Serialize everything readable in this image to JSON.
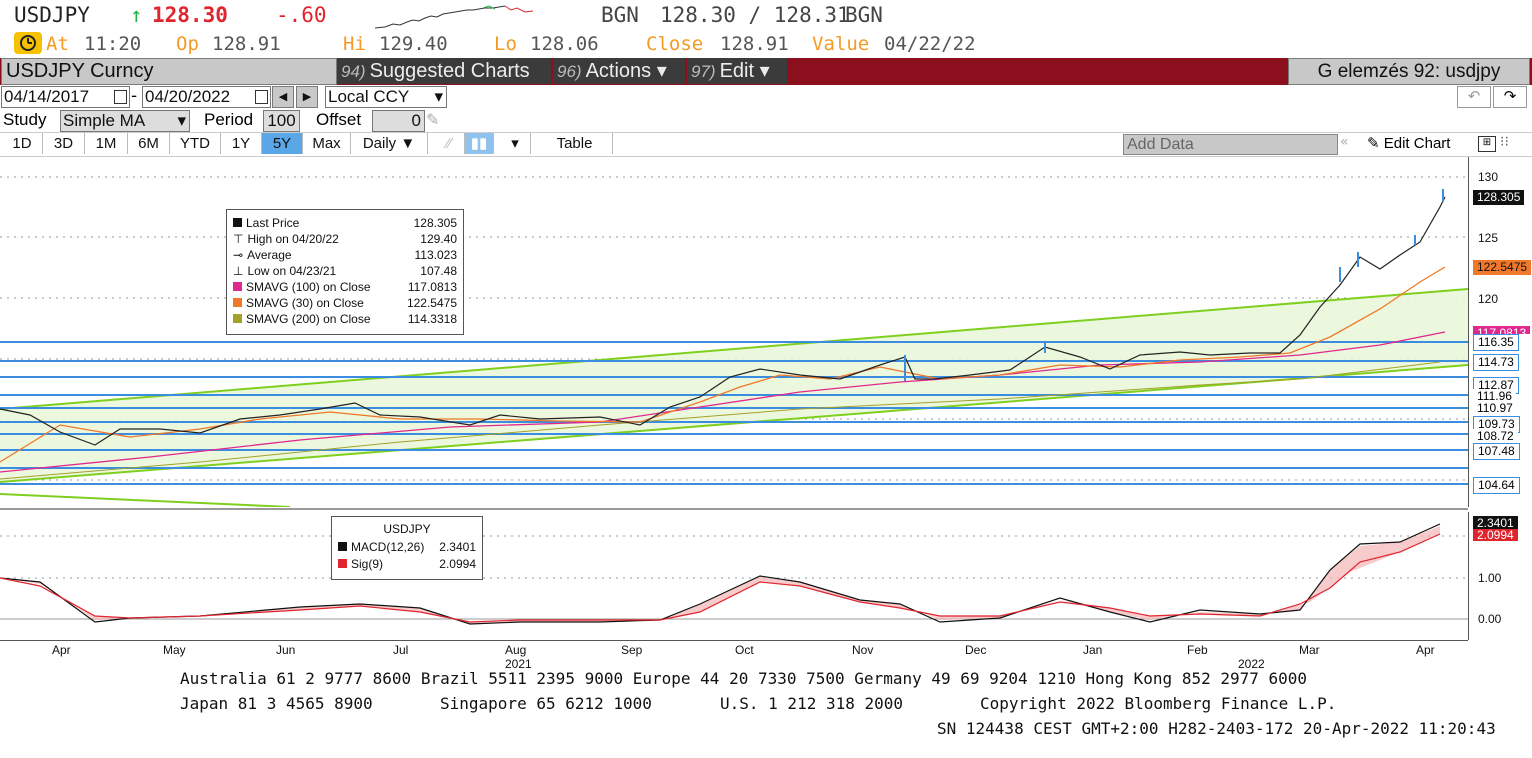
{
  "header": {
    "ticker": "USDJPY",
    "arrow": "↑",
    "last": "128.30",
    "change": "-.60",
    "source1": "BGN",
    "bid_ask": "128.30 / 128.31",
    "source2": "BGN",
    "at_label": "At",
    "at_value": "11:20",
    "op_label": "Op",
    "op_value": "128.91",
    "hi_label": "Hi",
    "hi_value": "129.40",
    "lo_label": "Lo",
    "lo_value": "128.06",
    "close_label": "Close",
    "close_value": "128.91",
    "value_label": "Value",
    "value_date": "04/22/22"
  },
  "toolbar": {
    "security": "USDJPY Curncy",
    "suggested_num": "94)",
    "suggested_label": "Suggested Charts",
    "actions_num": "96)",
    "actions_label": "Actions ▾",
    "edit_num": "97)",
    "edit_label": "Edit ▾",
    "function_title": "G elemzés 92: usdjpy"
  },
  "dates": {
    "start": "04/14/2017",
    "separator": "-",
    "end": "04/20/2022",
    "prev": "◀",
    "next": "▶",
    "currency": "Local CCY",
    "currency_caret": "▾"
  },
  "study": {
    "label": "Study",
    "value": "Simple MA",
    "caret": "▾",
    "period_label": "Period",
    "period_value": "100",
    "offset_label": "Offset",
    "offset_value": "0"
  },
  "ranges": {
    "items": [
      "1D",
      "3D",
      "1M",
      "6M",
      "YTD",
      "1Y",
      "5Y",
      "Max"
    ],
    "active": "5Y",
    "frequency": "Daily ▼",
    "table": "Table",
    "add_data": "Add Data",
    "edit_chart": "Edit Chart"
  },
  "legend_top": {
    "rows": [
      {
        "label": "Last Price",
        "value": "128.305"
      },
      {
        "label": "High on 04/20/22",
        "value": "129.40"
      },
      {
        "label": "Average",
        "value": "113.023"
      },
      {
        "label": "Low on 04/23/21",
        "value": "107.48"
      },
      {
        "label": "SMAVG (100)  on Close",
        "value": "117.0813"
      },
      {
        "label": "SMAVG (30)  on Close",
        "value": "122.5475"
      },
      {
        "label": "SMAVG (200)  on Close",
        "value": "114.3318"
      }
    ]
  },
  "legend_bottom": {
    "title": "USDJPY",
    "rows": [
      {
        "label": "MACD(12,26)",
        "value": "2.3401"
      },
      {
        "label": "Sig(9)",
        "value": "2.0994"
      }
    ]
  },
  "axis": {
    "price_ticks": [
      "130",
      "125",
      "120"
    ],
    "macd_ticks": [
      "1.00",
      "0.00"
    ],
    "levels": [
      "116.35",
      "114.73",
      "112.87",
      "111.96",
      "110.97",
      "109.73",
      "108.72",
      "107.48",
      "104.64"
    ],
    "tag_last": "128.305",
    "tag_sma30": "122.5475",
    "tag_sma100": "117.0813",
    "tag_macd": "2.3401",
    "tag_sig": "2.0994",
    "months": [
      "Apr",
      "May",
      "Jun",
      "Jul",
      "Aug",
      "Sep",
      "Oct",
      "Nov",
      "Dec",
      "Jan",
      "Feb",
      "Mar",
      "Apr"
    ],
    "year1": "2021",
    "year2": "2022"
  },
  "colors": {
    "bar_red": "#8b0f1c",
    "sma100": "#e0288f",
    "sma30": "#f0782a",
    "sma200": "#a3a12a",
    "trend": "#7fcf1f",
    "level": "#3b8de0"
  },
  "footer": {
    "line1": "Australia 61 2 9777 8600 Brazil 5511 2395 9000 Europe 44 20 7330 7500 Germany 49 69 9204 1210 Hong Kong 852 2977 6000",
    "line2a": "Japan 81 3 4565 8900",
    "line2b": "Singapore 65 6212 1000",
    "line2c": "U.S. 1 212 318 2000",
    "line2d": "Copyright 2022 Bloomberg Finance L.P.",
    "line3": "SN 124438 CEST GMT+2:00 H282-2403-172 20-Apr-2022 11:20:43"
  }
}
